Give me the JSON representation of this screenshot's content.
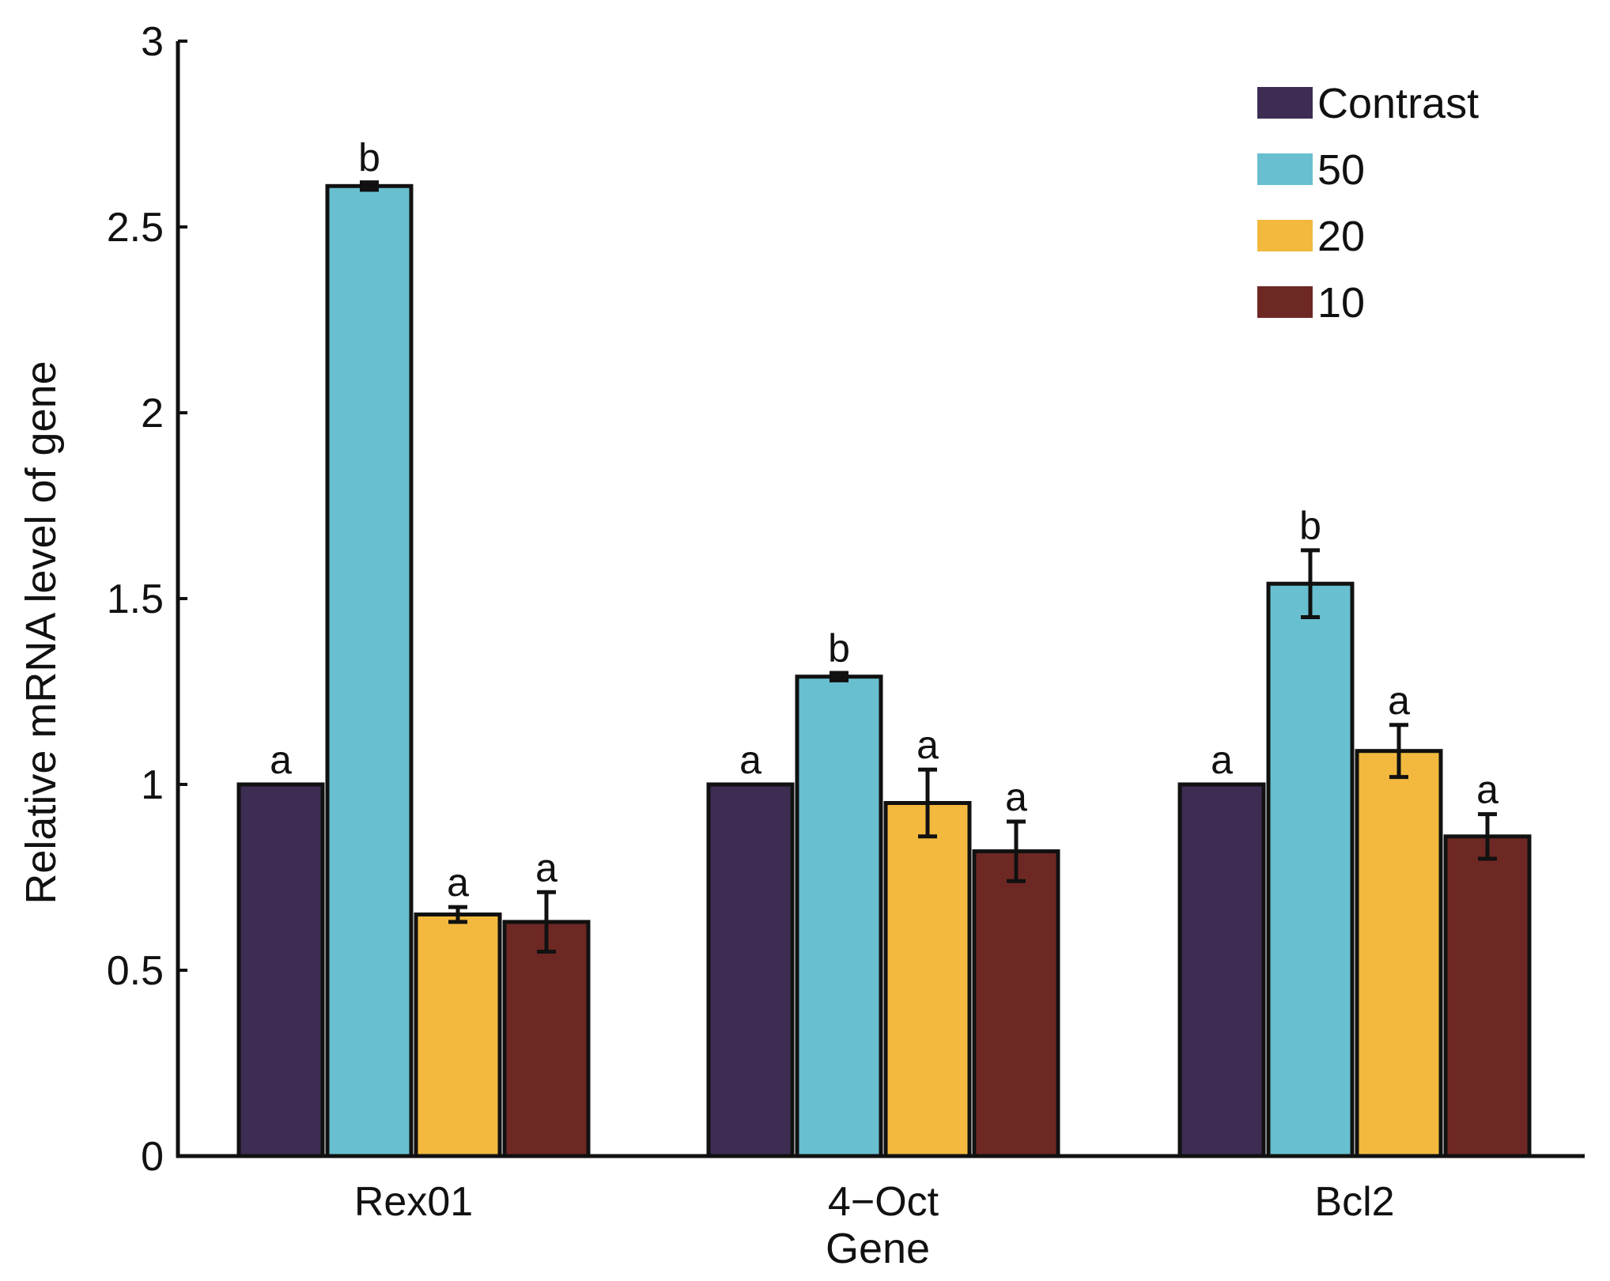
{
  "chart_data": {
    "type": "bar",
    "title": "",
    "xlabel": "Gene",
    "ylabel": "Relative mRNA level of gene",
    "categories": [
      "Rex01",
      "4−Oct",
      "Bcl2"
    ],
    "ylim": [
      0,
      3
    ],
    "yticks": [
      "0",
      "0.5",
      "1",
      "1.5",
      "2",
      "2.5",
      "3"
    ],
    "grid": false,
    "legend_position": "top-right",
    "series": [
      {
        "name": "Contrast",
        "color": "#3d2d52",
        "values": [
          1.0,
          1.0,
          1.0
        ],
        "errors": [
          0.0,
          0.0,
          0.0
        ],
        "labels": [
          "a",
          "a",
          "a"
        ]
      },
      {
        "name": "50",
        "color": "#68bfcf",
        "values": [
          2.61,
          1.29,
          1.54
        ],
        "errors": [
          0.01,
          0.01,
          0.09
        ],
        "labels": [
          "b",
          "b",
          "b"
        ]
      },
      {
        "name": "20",
        "color": "#f2b93e",
        "values": [
          0.65,
          0.95,
          1.09
        ],
        "errors": [
          0.02,
          0.09,
          0.07
        ],
        "labels": [
          "a",
          "a",
          "a"
        ]
      },
      {
        "name": "10",
        "color": "#6e2824",
        "values": [
          0.63,
          0.82,
          0.86
        ],
        "errors": [
          0.08,
          0.08,
          0.06
        ],
        "labels": [
          "a",
          "a",
          "a"
        ]
      }
    ]
  }
}
